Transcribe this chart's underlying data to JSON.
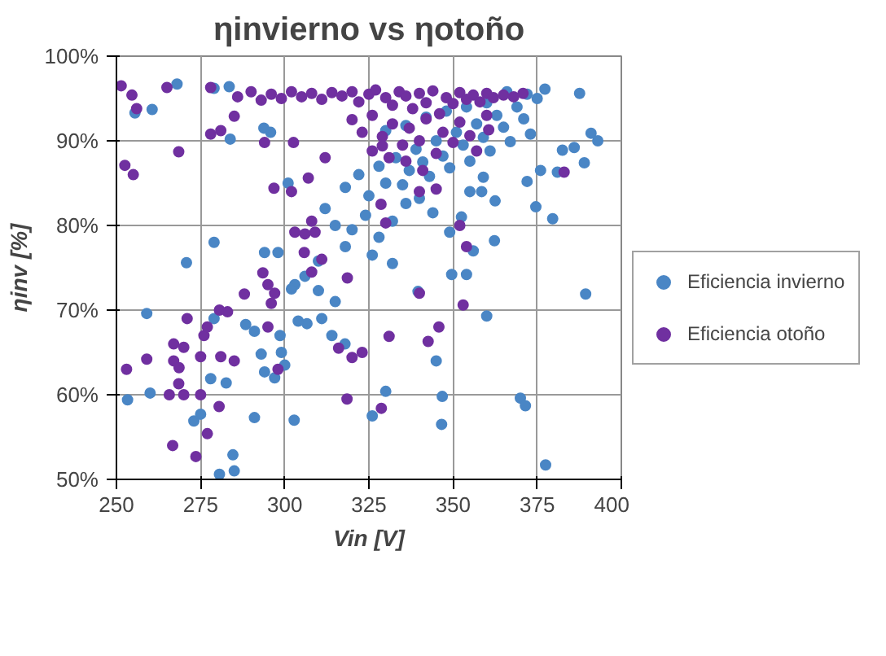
{
  "chart_data": {
    "type": "scatter",
    "title": "ηinvierno vs ηotoño",
    "xlabel": "Vin [V]",
    "ylabel": "ηinv [%]",
    "xlim": [
      250,
      400
    ],
    "xticks": [
      250,
      275,
      300,
      325,
      350,
      375,
      400
    ],
    "ylim": [
      50,
      100
    ],
    "yticks": [
      {
        "value": 50,
        "label": "50%"
      },
      {
        "value": 60,
        "label": "60%"
      },
      {
        "value": 70,
        "label": "70%"
      },
      {
        "value": 80,
        "label": "80%"
      },
      {
        "value": 90,
        "label": "90%"
      },
      {
        "value": 100,
        "label": "100%"
      }
    ],
    "grid": true,
    "legend": "right",
    "marker": "circle",
    "series": [
      {
        "name": "Eficiencia invierno",
        "color": "#4a86c5",
        "x": [
          268,
          260.6,
          255.5,
          279,
          283.5,
          283.8,
          270.8,
          279,
          259,
          260,
          253.3,
          278,
          282.6,
          273,
          275,
          291,
          302.8,
          280.6,
          285,
          284.6,
          279,
          288.4,
          291,
          298.6,
          299,
          300,
          294,
          297,
          293,
          304,
          306.6,
          314,
          311,
          303,
          294,
          298,
          310,
          315,
          317.9,
          301,
          295.8,
          293.8,
          377.3,
          387.6,
          391,
          393,
          382.5,
          386,
          389,
          376,
          381,
          372,
          374.6,
          379.6,
          362.5,
          362.3,
          356,
          349,
          352.5,
          349.6,
          354,
          339.6,
          360,
          389.4,
          345,
          346.8,
          346.6,
          330,
          326,
          370,
          371.5,
          377.5,
          332,
          359,
          358.5,
          355,
          318,
          322,
          325,
          328,
          330,
          333,
          335,
          337,
          339,
          341,
          343,
          345,
          347,
          349,
          351,
          353,
          355,
          357,
          359,
          361,
          363,
          365,
          367,
          369,
          371,
          373,
          375,
          372,
          366,
          360,
          354,
          348,
          342,
          336,
          330,
          312,
          315,
          320,
          324,
          328,
          332,
          336,
          340,
          344,
          326,
          318,
          310,
          306,
          302
        ],
        "values": [
          96.7,
          93.7,
          93.3,
          96.2,
          96.4,
          90.2,
          75.6,
          78,
          69.6,
          60.2,
          59.4,
          61.9,
          61.4,
          56.9,
          57.7,
          57.3,
          57,
          50.6,
          51,
          52.9,
          69,
          68.3,
          67.5,
          67,
          65,
          63.5,
          62.7,
          62,
          64.8,
          68.7,
          68.4,
          67,
          69,
          73,
          76.8,
          76.8,
          72.3,
          71,
          66,
          85,
          91,
          91.5,
          96.1,
          95.6,
          90.9,
          90,
          88.9,
          89.2,
          87.4,
          86.5,
          86.3,
          85.2,
          82.2,
          80.8,
          82.9,
          78.2,
          77,
          79.2,
          81,
          74.2,
          74.2,
          72.2,
          69.3,
          71.9,
          64,
          59.8,
          56.5,
          60.4,
          57.5,
          59.6,
          58.7,
          51.7,
          75.5,
          85.7,
          84,
          84,
          84.5,
          86,
          83.5,
          87,
          85,
          88,
          84.8,
          86.5,
          89,
          87.5,
          85.8,
          90,
          88.2,
          86.8,
          91,
          89.5,
          87.6,
          92,
          90.4,
          88.8,
          93,
          91.6,
          89.9,
          94,
          92.6,
          90.8,
          95,
          95.5,
          95.8,
          94.5,
          94,
          93.5,
          92.8,
          91.8,
          91.2,
          82,
          80,
          79.5,
          81.2,
          78.6,
          80.5,
          82.6,
          83.2,
          81.5,
          76.5,
          77.5,
          75.8,
          74,
          72.5
        ]
      },
      {
        "name": "Eficiencia otoño",
        "color": "#7030a0",
        "x": [
          251.4,
          254.6,
          265,
          256,
          278,
          252.5,
          255,
          268.5,
          278,
          281,
          285,
          294,
          296.8,
          302.6,
          302,
          307,
          312,
          303,
          308,
          309,
          306,
          293.5,
          295,
          297,
          296,
          288,
          280.6,
          283,
          271,
          277,
          276,
          267,
          270,
          259,
          253,
          267,
          268.6,
          275,
          281,
          285,
          268.5,
          265.7,
          270,
          275,
          280.5,
          298,
          277,
          266.7,
          273.6,
          318.5,
          316,
          320,
          323,
          305.8,
          308,
          311,
          318.6,
          295,
          370.8,
          360.6,
          383,
          352,
          354,
          340,
          353,
          345.8,
          331,
          342.6,
          328.7,
          330,
          328.6,
          340,
          345,
          329,
          286,
          290,
          293,
          296,
          299,
          302,
          305,
          308,
          311,
          314,
          317,
          320,
          322,
          325,
          327,
          330,
          332,
          334,
          336,
          338,
          340,
          342,
          344,
          346,
          348,
          350,
          352,
          354,
          356,
          358,
          360,
          362,
          365,
          368,
          320,
          323,
          326,
          329,
          332,
          335,
          337,
          340,
          342,
          345,
          347,
          350,
          352,
          355,
          357,
          360,
          336,
          341,
          331,
          326
        ],
        "values": [
          96.5,
          95.4,
          96.3,
          93.8,
          96.3,
          87.1,
          86,
          88.7,
          90.8,
          91.2,
          92.9,
          89.8,
          84.4,
          89.8,
          84,
          85.6,
          88,
          79.2,
          80.5,
          79.2,
          79,
          74.4,
          73,
          72,
          70.8,
          71.9,
          70,
          69.8,
          69,
          68,
          67,
          66,
          65.6,
          64.2,
          63,
          64,
          63.2,
          64.5,
          64.5,
          64,
          61.3,
          60,
          60,
          60,
          58.6,
          63,
          55.4,
          54,
          52.7,
          59.5,
          65.5,
          64.4,
          65,
          76.8,
          74.5,
          76,
          73.8,
          68,
          95.6,
          91.3,
          86.3,
          80,
          77.5,
          72,
          70.6,
          68,
          66.9,
          66.3,
          58.4,
          80.3,
          82.5,
          84,
          84.3,
          89.4,
          95.2,
          95.8,
          94.8,
          95.5,
          95,
          95.8,
          95.2,
          95.6,
          94.9,
          95.7,
          95.3,
          95.8,
          94.6,
          95.5,
          96,
          95.1,
          94.2,
          95.8,
          95.3,
          93.8,
          95.6,
          94.5,
          95.9,
          93.2,
          95.1,
          94.4,
          95.7,
          94.9,
          95.4,
          94.6,
          95.6,
          95.1,
          95.4,
          95.2,
          92.5,
          91,
          93,
          90.5,
          92,
          89.5,
          91.5,
          90,
          92.6,
          88.5,
          91,
          89.8,
          92.2,
          90.6,
          88.8,
          93,
          87.6,
          86.5,
          88,
          88.8
        ]
      }
    ]
  }
}
